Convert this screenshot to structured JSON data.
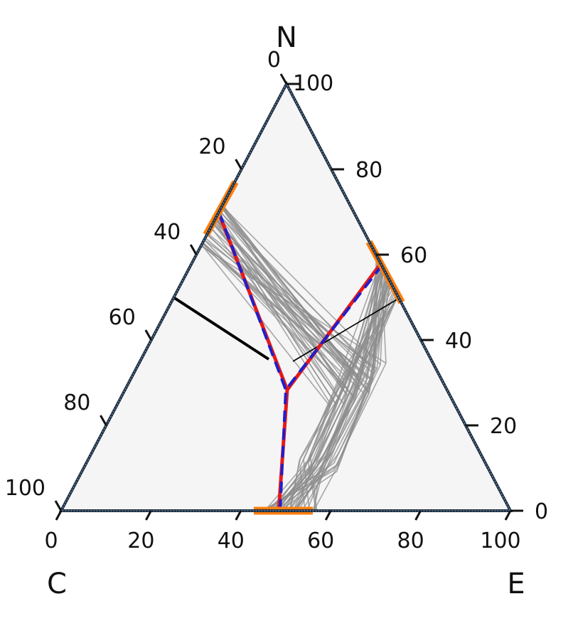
{
  "chart_data": {
    "type": "ternary",
    "corner_labels": {
      "top": "N",
      "left": "C",
      "right": "E"
    },
    "axes": {
      "bottom": {
        "ticks": [
          "0",
          "20",
          "40",
          "60",
          "80",
          "100"
        ]
      },
      "left": {
        "ticks": [
          "0",
          "20",
          "40",
          "60",
          "80",
          "100"
        ]
      },
      "right": {
        "ticks": [
          "0",
          "20",
          "40",
          "60",
          "80"
        ]
      }
    },
    "right_tick_values": [
      0,
      20,
      40,
      60,
      80
    ],
    "tick_top_label": "100",
    "grid": false,
    "colors": {
      "background_fill": "#f5f5f5",
      "ensemble": "#8c8c8c",
      "range_marker": "#ff7f0e",
      "median_line": "#e31a1c",
      "mean_line": "#1f1fcc",
      "boundary": "#1b2a3a",
      "black_line": "#000000"
    },
    "median_path": {
      "junction": [
        49,
        30
      ],
      "arms": [
        [
          [
            70,
            0
          ],
          [
            49,
            30
          ]
        ],
        [
          [
            34,
            66
          ],
          [
            49,
            30
          ]
        ],
        [
          [
            45,
            55
          ],
          [
            49,
            30
          ]
        ]
      ]
    },
    "mean_path": {
      "junction": [
        48.5,
        30
      ],
      "arms": [
        [
          [
            70,
            0
          ],
          [
            48.5,
            30
          ]
        ],
        [
          [
            34,
            66
          ],
          [
            48.5,
            30
          ]
        ],
        [
          [
            45,
            55
          ],
          [
            48.5,
            30
          ]
        ]
      ]
    },
    "black_lines": [
      [
        [
          58,
          0
        ],
        [
          56,
          35
        ]
      ],
      [
        [
          37.5,
          35
        ],
        [
          50,
          50
        ]
      ]
    ],
    "range_markers": [
      {
        "start": [
          36,
          64
        ],
        "end": [
          30,
          70
        ]
      },
      {
        "start": [
          45,
          59
        ],
        "end": [
          46,
          51
        ]
      },
      {
        "start": [
          44,
          0
        ],
        "end": [
          57,
          0
        ]
      }
    ],
    "ensemble_count": 40
  }
}
